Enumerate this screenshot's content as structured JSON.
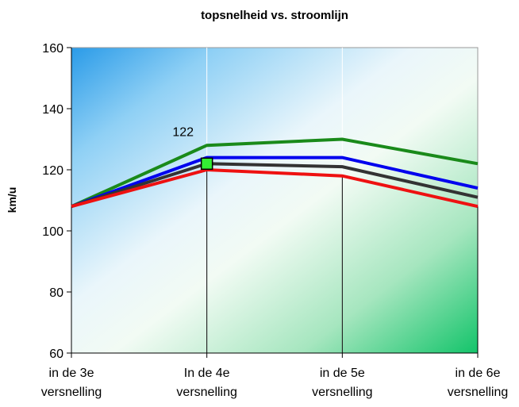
{
  "chart_data": {
    "type": "line",
    "title": "topsnelheid vs. stroomlijn",
    "xlabel": "",
    "ylabel": "km/u",
    "ylim": [
      60,
      160
    ],
    "y_ticks": [
      "60",
      "80",
      "100",
      "120",
      "140",
      "160"
    ],
    "categories": [
      [
        "in de 3e",
        "versnelling"
      ],
      [
        "In de 4e",
        "versnelling"
      ],
      [
        "in de 5e",
        "versnelling"
      ],
      [
        "in de 6e",
        "versnelling"
      ]
    ],
    "series": [
      {
        "color": "#1a8a1a",
        "values": [
          108,
          128,
          130,
          122
        ]
      },
      {
        "color": "#0000ee",
        "values": [
          108,
          124,
          124,
          114
        ]
      },
      {
        "color": "#333333",
        "values": [
          108,
          122,
          121,
          111
        ]
      },
      {
        "color": "#ee1111",
        "values": [
          108,
          120,
          118,
          108
        ]
      }
    ],
    "highlight": {
      "series_index": 2,
      "point_index": 1,
      "value": 122,
      "label": "122",
      "fill": "#33ee33"
    },
    "grid": {
      "vertical": true,
      "horizontal": false
    },
    "legend": "none"
  }
}
